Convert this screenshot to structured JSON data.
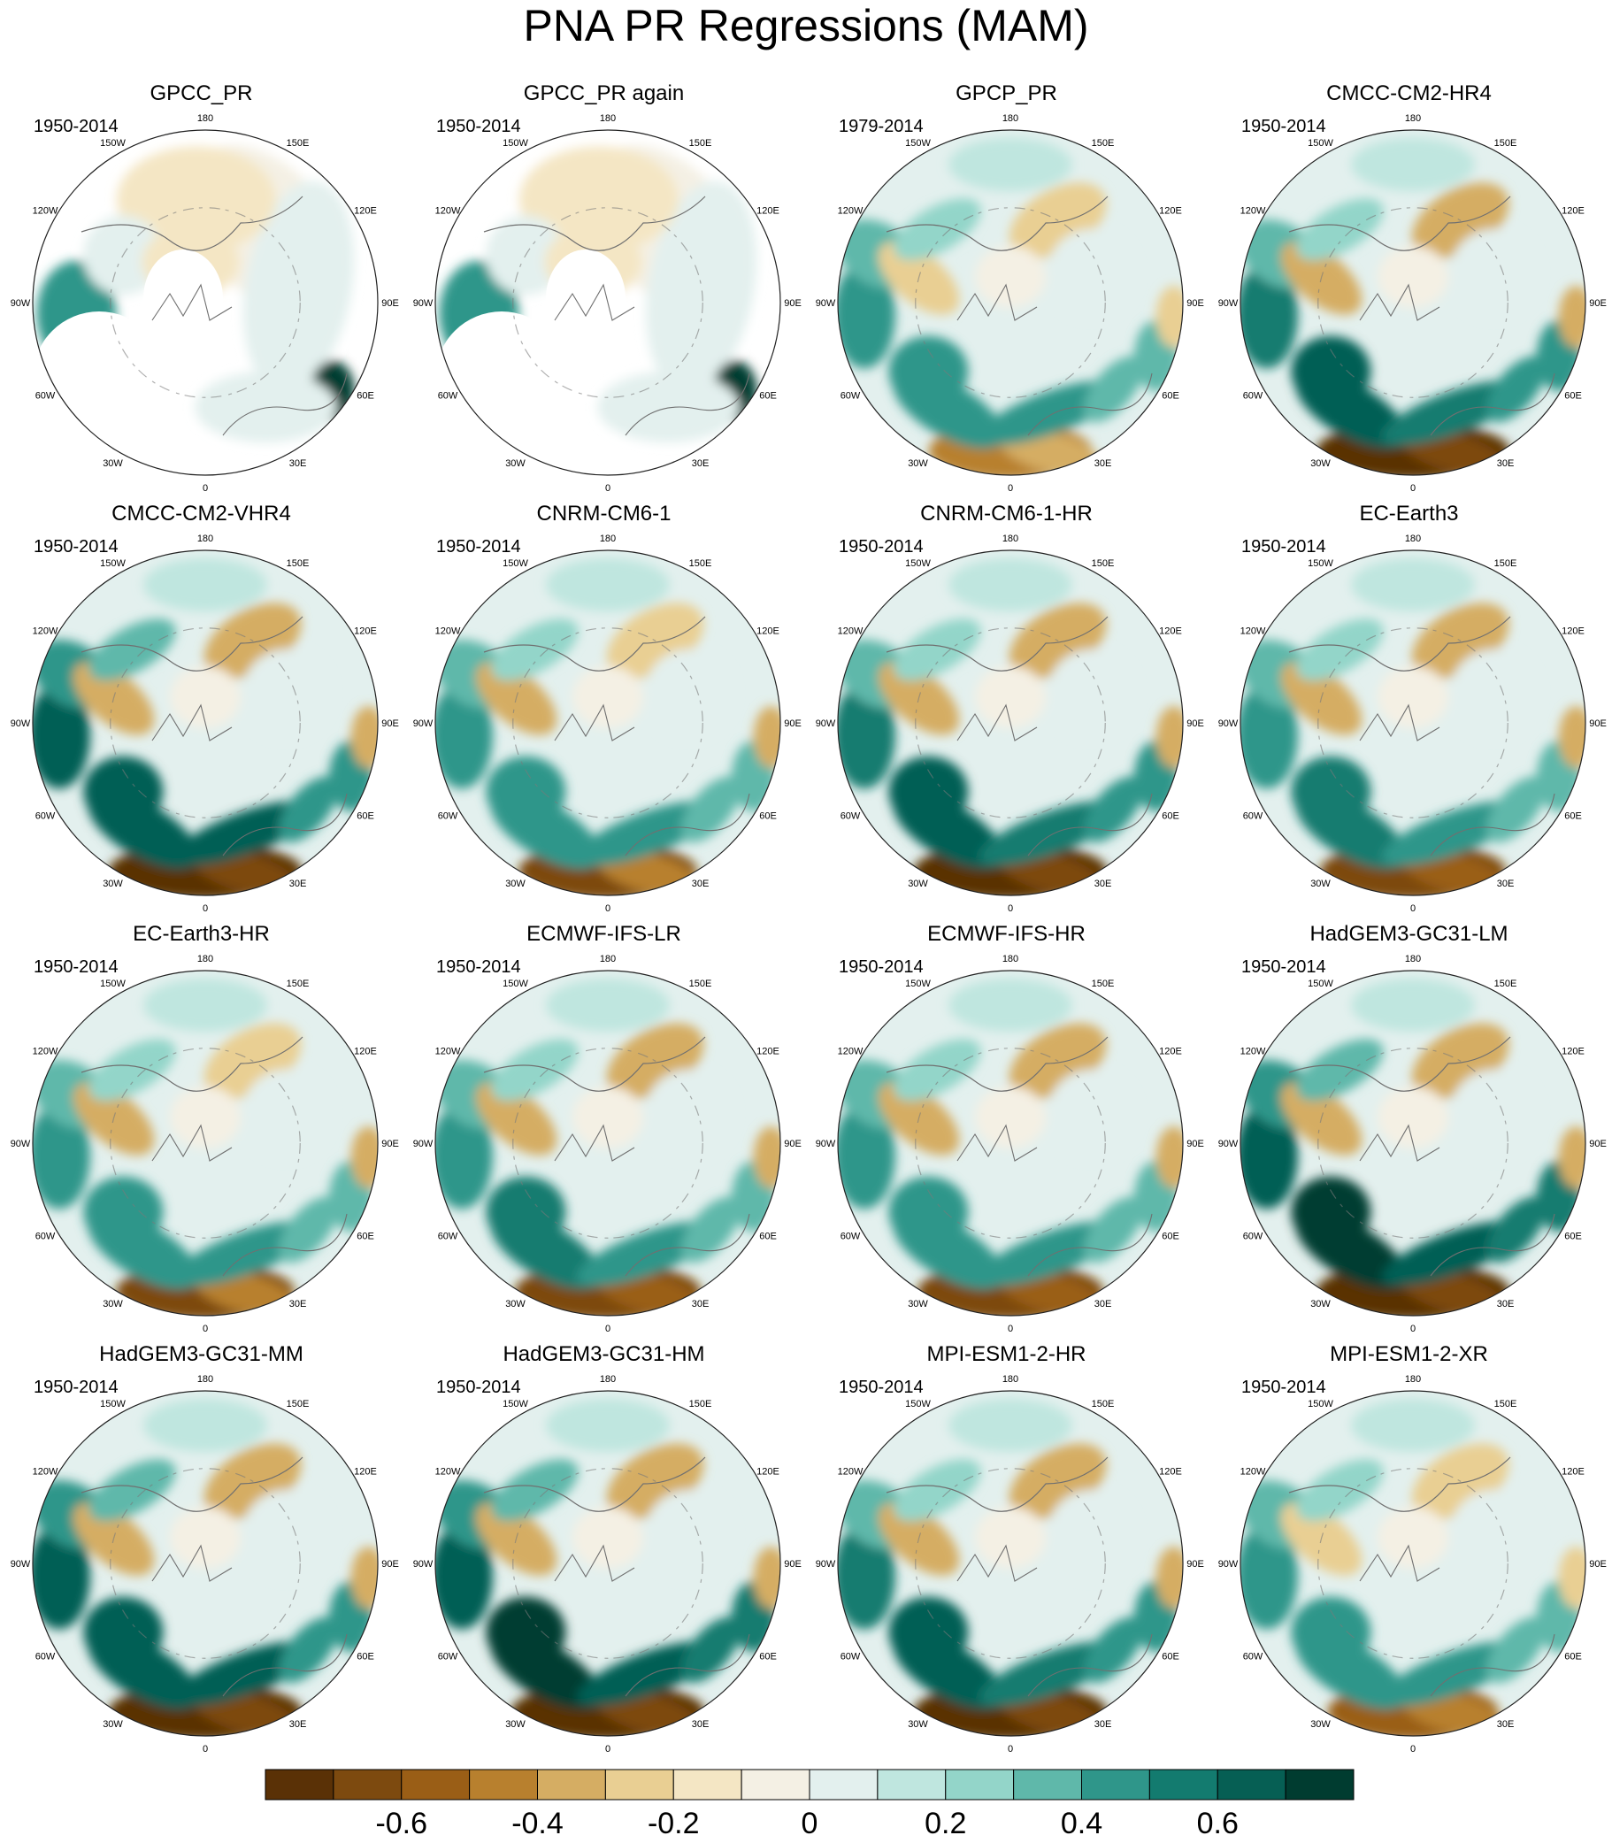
{
  "title": "PNA PR Regressions (MAM)",
  "longitude_labels": [
    "180",
    "150E",
    "120E",
    "90E",
    "60E",
    "30E",
    "0",
    "30W",
    "60W",
    "90W",
    "120W",
    "150W"
  ],
  "panels": [
    {
      "name": "GPCC_PR",
      "period": "1950-2014"
    },
    {
      "name": "GPCC_PR again",
      "period": "1950-2014"
    },
    {
      "name": "GPCP_PR",
      "period": "1979-2014"
    },
    {
      "name": "CMCC-CM2-HR4",
      "period": "1950-2014"
    },
    {
      "name": "CMCC-CM2-VHR4",
      "period": "1950-2014"
    },
    {
      "name": "CNRM-CM6-1",
      "period": "1950-2014"
    },
    {
      "name": "CNRM-CM6-1-HR",
      "period": "1950-2014"
    },
    {
      "name": "EC-Earth3",
      "period": "1950-2014"
    },
    {
      "name": "EC-Earth3-HR",
      "period": "1950-2014"
    },
    {
      "name": "ECMWF-IFS-LR",
      "period": "1950-2014"
    },
    {
      "name": "ECMWF-IFS-HR",
      "period": "1950-2014"
    },
    {
      "name": "HadGEM3-GC31-LM",
      "period": "1950-2014"
    },
    {
      "name": "HadGEM3-GC31-MM",
      "period": "1950-2014"
    },
    {
      "name": "HadGEM3-GC31-HM",
      "period": "1950-2014"
    },
    {
      "name": "MPI-ESM1-2-HR",
      "period": "1950-2014"
    },
    {
      "name": "MPI-ESM1-2-XR",
      "period": "1950-2014"
    }
  ],
  "colorbar": {
    "colors": [
      "#5a3106",
      "#7d4a0f",
      "#9a5e16",
      "#b8802e",
      "#d5ad63",
      "#e9cf93",
      "#f4e6c4",
      "#f4f0e4",
      "#e3f0ee",
      "#bfe6df",
      "#93d5c9",
      "#5fb8aa",
      "#2f968a",
      "#137b6f",
      "#065f54",
      "#003c30"
    ],
    "tick_labels": [
      "-0.6",
      "-0.4",
      "-0.2",
      "0",
      "0.2",
      "0.4",
      "0.6"
    ]
  }
}
